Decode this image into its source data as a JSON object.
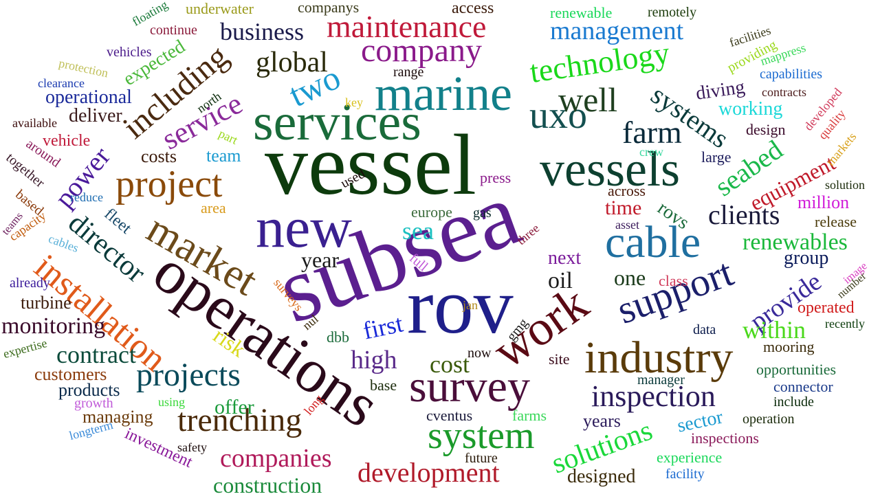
{
  "words": [
    {
      "text": "vessel",
      "color": "#0d3b0d"
    },
    {
      "text": "subsea",
      "color": "#5b1f8f"
    },
    {
      "text": "services",
      "color": "#1a6b3a"
    },
    {
      "text": "rov",
      "color": "#1f1f8a"
    },
    {
      "text": "operations",
      "color": "#2a0a1a"
    },
    {
      "text": "new",
      "color": "#3a2090"
    },
    {
      "text": "marine",
      "color": "#12808a"
    },
    {
      "text": "vessels",
      "color": "#0d4030"
    },
    {
      "text": "work",
      "color": "#5a0a14"
    },
    {
      "text": "survey",
      "color": "#4a0e3a"
    },
    {
      "text": "industry",
      "color": "#5a3b0a"
    },
    {
      "text": "cable",
      "color": "#1f6fa0"
    },
    {
      "text": "support",
      "color": "#1b1f6a"
    },
    {
      "text": "market",
      "color": "#6b4a1a"
    },
    {
      "text": "project",
      "color": "#8a4a0a"
    },
    {
      "text": "uxo",
      "color": "#145050"
    },
    {
      "text": "system",
      "color": "#1a9a2a"
    },
    {
      "text": "installation",
      "color": "#e05a1a"
    },
    {
      "text": "company",
      "color": "#8a1a8a"
    },
    {
      "text": "technology",
      "color": "#1ad81a"
    },
    {
      "text": "well",
      "color": "#1f3f1f"
    },
    {
      "text": "two",
      "color": "#1a9ad0"
    },
    {
      "text": "maintenance",
      "color": "#c01a3a"
    },
    {
      "text": "projects",
      "color": "#0a4a5a"
    },
    {
      "text": "trenching",
      "color": "#4a2a0a"
    },
    {
      "text": "inspection",
      "color": "#2a1a5a"
    },
    {
      "text": "farm",
      "color": "#0a2a3a"
    },
    {
      "text": "director",
      "color": "#0a3a3a"
    },
    {
      "text": "including",
      "color": "#4a2a10"
    },
    {
      "text": "solutions",
      "color": "#1ad83a"
    },
    {
      "text": "development",
      "color": "#b01a2a"
    },
    {
      "text": "service",
      "color": "#8a2a9a"
    },
    {
      "text": "systems",
      "color": "#0a3a3a"
    },
    {
      "text": "seabed",
      "color": "#1ab84a"
    },
    {
      "text": "management",
      "color": "#1a7ad0"
    },
    {
      "text": "global",
      "color": "#2a2a0a"
    },
    {
      "text": "power",
      "color": "#4a1a9a"
    },
    {
      "text": "companies",
      "color": "#b01a5a"
    },
    {
      "text": "provide",
      "color": "#3a2a9a"
    },
    {
      "text": "renewables",
      "color": "#1ab83a"
    },
    {
      "text": "clients",
      "color": "#1a1a3a"
    },
    {
      "text": "equipment",
      "color": "#c01a2a"
    },
    {
      "text": "business",
      "color": "#1a1a4a"
    },
    {
      "text": "contract",
      "color": "#0a4a3a"
    },
    {
      "text": "first",
      "color": "#1a2ad8"
    },
    {
      "text": "high",
      "color": "#5a2a8a"
    },
    {
      "text": "monitoring",
      "color": "#3a0a2a"
    },
    {
      "text": "construction",
      "color": "#1a8a3a"
    },
    {
      "text": "sea",
      "color": "#1ac0c0"
    },
    {
      "text": "within",
      "color": "#4ad81a"
    },
    {
      "text": "cost",
      "color": "#3a5a0a"
    },
    {
      "text": "year",
      "color": "#1a1a1a"
    },
    {
      "text": "risk",
      "color": "#d8d81a"
    },
    {
      "text": "working",
      "color": "#1ad8d8"
    },
    {
      "text": "diving",
      "color": "#3a1a5a"
    },
    {
      "text": "deliver",
      "color": "#3a1a1a"
    },
    {
      "text": "operational",
      "color": "#1a2a9a"
    },
    {
      "text": "expected",
      "color": "#4ab83a"
    },
    {
      "text": "offer",
      "color": "#1a9a3a"
    },
    {
      "text": "turbine",
      "color": "#3a1a0a"
    },
    {
      "text": "customers",
      "color": "#8a3a0a"
    },
    {
      "text": "products",
      "color": "#0a2a4a"
    },
    {
      "text": "managing",
      "color": "#6a3a0a"
    },
    {
      "text": "investment",
      "color": "#8a1a9a"
    },
    {
      "text": "next",
      "color": "#7a1a9a"
    },
    {
      "text": "group",
      "color": "#0a1a5a"
    },
    {
      "text": "one",
      "color": "#1a3a1a"
    },
    {
      "text": "oil",
      "color": "#1a1a1a"
    },
    {
      "text": "time",
      "color": "#c01a2a"
    },
    {
      "text": "rovs",
      "color": "#1a6a3a"
    },
    {
      "text": "million",
      "color": "#d01ad8"
    },
    {
      "text": "years",
      "color": "#2a1a5a"
    },
    {
      "text": "designed",
      "color": "#3a2a0a"
    },
    {
      "text": "sector",
      "color": "#1a9ad0"
    },
    {
      "text": "opportunities",
      "color": "#1a6a3a"
    },
    {
      "text": "connector",
      "color": "#1a3a8a"
    },
    {
      "text": "mooring",
      "color": "#3a2a0a"
    },
    {
      "text": "recently",
      "color": "#0a3a0a"
    },
    {
      "text": "operated",
      "color": "#d01a1a"
    },
    {
      "text": "release",
      "color": "#4a3a0a"
    },
    {
      "text": "solution",
      "color": "#1a2a0a"
    },
    {
      "text": "large",
      "color": "#1a1a5a"
    },
    {
      "text": "design",
      "color": "#3a0a2a"
    },
    {
      "text": "capabilities",
      "color": "#1a6ad0"
    },
    {
      "text": "contracts",
      "color": "#4a1a1a"
    },
    {
      "text": "providing",
      "color": "#9ad81a"
    },
    {
      "text": "facilities",
      "color": "#3a3a1a"
    },
    {
      "text": "mappress",
      "color": "#3ad85a"
    },
    {
      "text": "renewable",
      "color": "#1ad85a"
    },
    {
      "text": "remotely",
      "color": "#1a3a0a"
    },
    {
      "text": "access",
      "color": "#3a1a0a"
    },
    {
      "text": "companys",
      "color": "#3a3a1a"
    },
    {
      "text": "underwater",
      "color": "#9a9a1a"
    },
    {
      "text": "floating",
      "color": "#1a7a3a"
    },
    {
      "text": "continue",
      "color": "#8a1a3a"
    },
    {
      "text": "vehicles",
      "color": "#4a1a8a"
    },
    {
      "text": "protection",
      "color": "#c0c05a"
    },
    {
      "text": "clearance",
      "color": "#1a3ab0"
    },
    {
      "text": "available",
      "color": "#3a0a0a"
    },
    {
      "text": "vehicle",
      "color": "#c01a3a"
    },
    {
      "text": "around",
      "color": "#8a1a5a"
    },
    {
      "text": "together",
      "color": "#3a1a2a"
    },
    {
      "text": "reduce",
      "color": "#1a6ab0"
    },
    {
      "text": "based",
      "color": "#8a3a0a"
    },
    {
      "text": "teams",
      "color": "#6a1a5a"
    },
    {
      "text": "capacity",
      "color": "#c05a0a"
    },
    {
      "text": "cables",
      "color": "#5ab0d8"
    },
    {
      "text": "already",
      "color": "#3a1a9a"
    },
    {
      "text": "expertise",
      "color": "#3a6a1a"
    },
    {
      "text": "growth",
      "color": "#c05ad8"
    },
    {
      "text": "using",
      "color": "#3ad83a"
    },
    {
      "text": "longterm",
      "color": "#3a8ad8"
    },
    {
      "text": "safety",
      "color": "#1a0a0a"
    },
    {
      "text": "future",
      "color": "#2a1a0a"
    },
    {
      "text": "long",
      "color": "#d01a1a"
    },
    {
      "text": "cventus",
      "color": "#1a1a3a"
    },
    {
      "text": "base",
      "color": "#1a2a0a"
    },
    {
      "text": "farms",
      "color": "#3ad85a"
    },
    {
      "text": "manager",
      "color": "#0a3a3a"
    },
    {
      "text": "site",
      "color": "#3a0a1a"
    },
    {
      "text": "experience",
      "color": "#1ad85a"
    },
    {
      "text": "facility",
      "color": "#1a6ad0"
    },
    {
      "text": "inspections",
      "color": "#8a1a5a"
    },
    {
      "text": "operation",
      "color": "#1a2a0a"
    },
    {
      "text": "include",
      "color": "#0a2a0a"
    },
    {
      "text": "now",
      "color": "#1a0a0a"
    },
    {
      "text": "gmg",
      "color": "#1a1a1a"
    },
    {
      "text": "dbb",
      "color": "#1a6a3a"
    },
    {
      "text": "nul",
      "color": "#3a2a0a"
    },
    {
      "text": "jan",
      "color": "#b08a1a"
    },
    {
      "text": "surveys",
      "color": "#d86a1a"
    },
    {
      "text": "full",
      "color": "#c05ad8"
    },
    {
      "text": "three",
      "color": "#8a1a3a"
    },
    {
      "text": "asset",
      "color": "#3a1a5a"
    },
    {
      "text": "across",
      "color": "#4a1a0a"
    },
    {
      "text": "class",
      "color": "#d03a5a"
    },
    {
      "text": "data",
      "color": "#0a1a4a"
    },
    {
      "text": "europe",
      "color": "#3a6a3a"
    },
    {
      "text": "gas",
      "color": "#0a2a2a"
    },
    {
      "text": "area",
      "color": "#d89a1a"
    },
    {
      "text": "press",
      "color": "#8a1a8a"
    },
    {
      "text": "used",
      "color": "#1a0a0a"
    },
    {
      "text": "fleet",
      "color": "#1a4a6a"
    },
    {
      "text": "costs",
      "color": "#3a1a0a"
    },
    {
      "text": "team",
      "color": "#1a9ad0"
    },
    {
      "text": "part",
      "color": "#9ad81a"
    },
    {
      "text": "north",
      "color": "#0a2a0a"
    },
    {
      "text": "key",
      "color": "#d8c01a"
    },
    {
      "text": "range",
      "color": "#1a0a0a"
    },
    {
      "text": "crew",
      "color": "#3ad8a0"
    },
    {
      "text": "developed",
      "color": "#d03a5a"
    },
    {
      "text": "quality",
      "color": "#d83a3a"
    },
    {
      "text": "markets",
      "color": "#d8a01a"
    },
    {
      "text": "image",
      "color": "#d83ac0"
    },
    {
      "text": "number",
      "color": "#3a3a1a"
    }
  ]
}
